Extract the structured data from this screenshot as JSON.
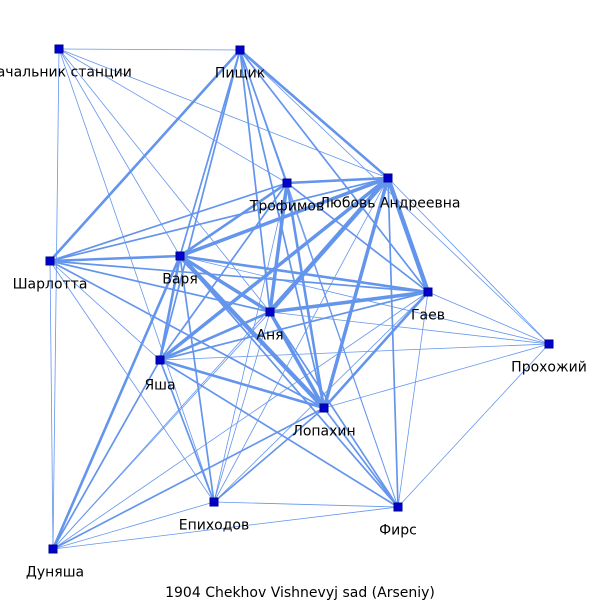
{
  "caption": "1904  Chekhov  Vishnevyj  sad  (Arseniy)",
  "colors": {
    "edge": "#6495ed",
    "node_fill": "#0000cd",
    "node_stroke": "#00008b"
  },
  "nodes": [
    {
      "id": "nachalnik",
      "label": "Начальник станции"
    },
    {
      "id": "pishchik",
      "label": "Пищик"
    },
    {
      "id": "trofimov",
      "label": "Трофимов"
    },
    {
      "id": "lyubov",
      "label": "Любовь Андреевна"
    },
    {
      "id": "sharlotta",
      "label": "Шарлотта"
    },
    {
      "id": "varya",
      "label": "Варя"
    },
    {
      "id": "gaev",
      "label": "Гаев"
    },
    {
      "id": "anya",
      "label": "Аня"
    },
    {
      "id": "prokhozhiy",
      "label": "Прохожий"
    },
    {
      "id": "yasha",
      "label": "Яша"
    },
    {
      "id": "lopakhin",
      "label": "Лопахин"
    },
    {
      "id": "epikhodov",
      "label": "Епиходов"
    },
    {
      "id": "firs",
      "label": "Фирс"
    },
    {
      "id": "dunyasha",
      "label": "Дуняша"
    }
  ],
  "edges": [
    [
      "nachalnik",
      "pishchik",
      1
    ],
    [
      "nachalnik",
      "varya",
      1
    ],
    [
      "nachalnik",
      "lyubov",
      1
    ],
    [
      "nachalnik",
      "anya",
      1
    ],
    [
      "nachalnik",
      "epikhodov",
      1
    ],
    [
      "nachalnik",
      "dunyasha",
      1
    ],
    [
      "nachalnik",
      "trofimov",
      1
    ],
    [
      "pishchik",
      "lyubov",
      3
    ],
    [
      "pishchik",
      "trofimov",
      2
    ],
    [
      "pishchik",
      "gaev",
      2
    ],
    [
      "pishchik",
      "anya",
      2
    ],
    [
      "pishchik",
      "varya",
      2
    ],
    [
      "pishchik",
      "sharlotta",
      3
    ],
    [
      "pishchik",
      "lopakhin",
      2
    ],
    [
      "pishchik",
      "yasha",
      2
    ],
    [
      "pishchik",
      "prokhozhiy",
      1
    ],
    [
      "pishchik",
      "firs",
      1
    ],
    [
      "trofimov",
      "lyubov",
      3
    ],
    [
      "trofimov",
      "varya",
      3
    ],
    [
      "trofimov",
      "anya",
      4
    ],
    [
      "trofimov",
      "gaev",
      2
    ],
    [
      "trofimov",
      "lopakhin",
      3
    ],
    [
      "trofimov",
      "yasha",
      2
    ],
    [
      "trofimov",
      "sharlotta",
      2
    ],
    [
      "trofimov",
      "firs",
      1
    ],
    [
      "trofimov",
      "epikhodov",
      1
    ],
    [
      "lyubov",
      "varya",
      4
    ],
    [
      "lyubov",
      "anya",
      5
    ],
    [
      "lyubov",
      "gaev",
      5
    ],
    [
      "lyubov",
      "lopakhin",
      4
    ],
    [
      "lyubov",
      "yasha",
      4
    ],
    [
      "lyubov",
      "firs",
      2
    ],
    [
      "lyubov",
      "sharlotta",
      2
    ],
    [
      "lyubov",
      "epikhodov",
      1
    ],
    [
      "lyubov",
      "prokhozhiy",
      1
    ],
    [
      "lyubov",
      "dunyasha",
      1
    ],
    [
      "sharlotta",
      "varya",
      3
    ],
    [
      "sharlotta",
      "gaev",
      2
    ],
    [
      "sharlotta",
      "anya",
      2
    ],
    [
      "sharlotta",
      "lopakhin",
      2
    ],
    [
      "sharlotta",
      "yasha",
      1
    ],
    [
      "sharlotta",
      "epikhodov",
      1
    ],
    [
      "sharlotta",
      "dunyasha",
      1
    ],
    [
      "varya",
      "anya",
      4
    ],
    [
      "varya",
      "gaev",
      3
    ],
    [
      "varya",
      "lopakhin",
      5
    ],
    [
      "varya",
      "yasha",
      3
    ],
    [
      "varya",
      "epikhodov",
      2
    ],
    [
      "varya",
      "firs",
      2
    ],
    [
      "varya",
      "dunyasha",
      3
    ],
    [
      "varya",
      "prokhozhiy",
      1
    ],
    [
      "gaev",
      "anya",
      4
    ],
    [
      "gaev",
      "lopakhin",
      3
    ],
    [
      "gaev",
      "yasha",
      2
    ],
    [
      "gaev",
      "firs",
      1
    ],
    [
      "gaev",
      "prokhozhiy",
      1
    ],
    [
      "gaev",
      "epikhodov",
      1
    ],
    [
      "gaev",
      "dunyasha",
      1
    ],
    [
      "anya",
      "lopakhin",
      4
    ],
    [
      "anya",
      "yasha",
      3
    ],
    [
      "anya",
      "epikhodov",
      1
    ],
    [
      "anya",
      "firs",
      2
    ],
    [
      "anya",
      "prokhozhiy",
      1
    ],
    [
      "anya",
      "dunyasha",
      1
    ],
    [
      "yasha",
      "lopakhin",
      3
    ],
    [
      "yasha",
      "epikhodov",
      2
    ],
    [
      "yasha",
      "firs",
      2
    ],
    [
      "yasha",
      "dunyasha",
      2
    ],
    [
      "yasha",
      "prokhozhiy",
      1
    ],
    [
      "lopakhin",
      "epikhodov",
      2
    ],
    [
      "lopakhin",
      "firs",
      2
    ],
    [
      "lopakhin",
      "dunyasha",
      2
    ],
    [
      "lopakhin",
      "prokhozhiy",
      1
    ],
    [
      "epikhodov",
      "firs",
      1
    ],
    [
      "epikhodov",
      "dunyasha",
      1
    ],
    [
      "firs",
      "dunyasha",
      1
    ],
    [
      "firs",
      "prokhozhiy",
      1
    ]
  ]
}
